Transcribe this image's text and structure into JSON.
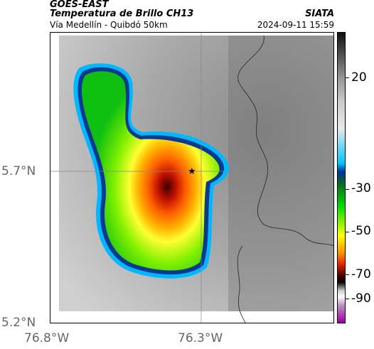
{
  "header": {
    "satellite": "GOES-EAST",
    "product": "Temperatura de Brillo CH13",
    "region": "Vía Medellín - Quibdó 50km",
    "agency": "SIATA",
    "datetime": "2024-09-11 15:59"
  },
  "axes": {
    "y_ticks": [
      "5.7°N",
      "5.2°N"
    ],
    "x_ticks": [
      "76.8°W",
      "76.3°W"
    ]
  },
  "colorbar": {
    "ticks": [
      "20",
      "-30",
      "-50",
      "-70",
      "-90"
    ],
    "colors": [
      "#111111",
      "#999999",
      "#00c8ff",
      "#00e000",
      "#ffff00",
      "#e02000",
      "#000000",
      "#a000a0"
    ]
  },
  "marker": {
    "symbol": "★"
  }
}
